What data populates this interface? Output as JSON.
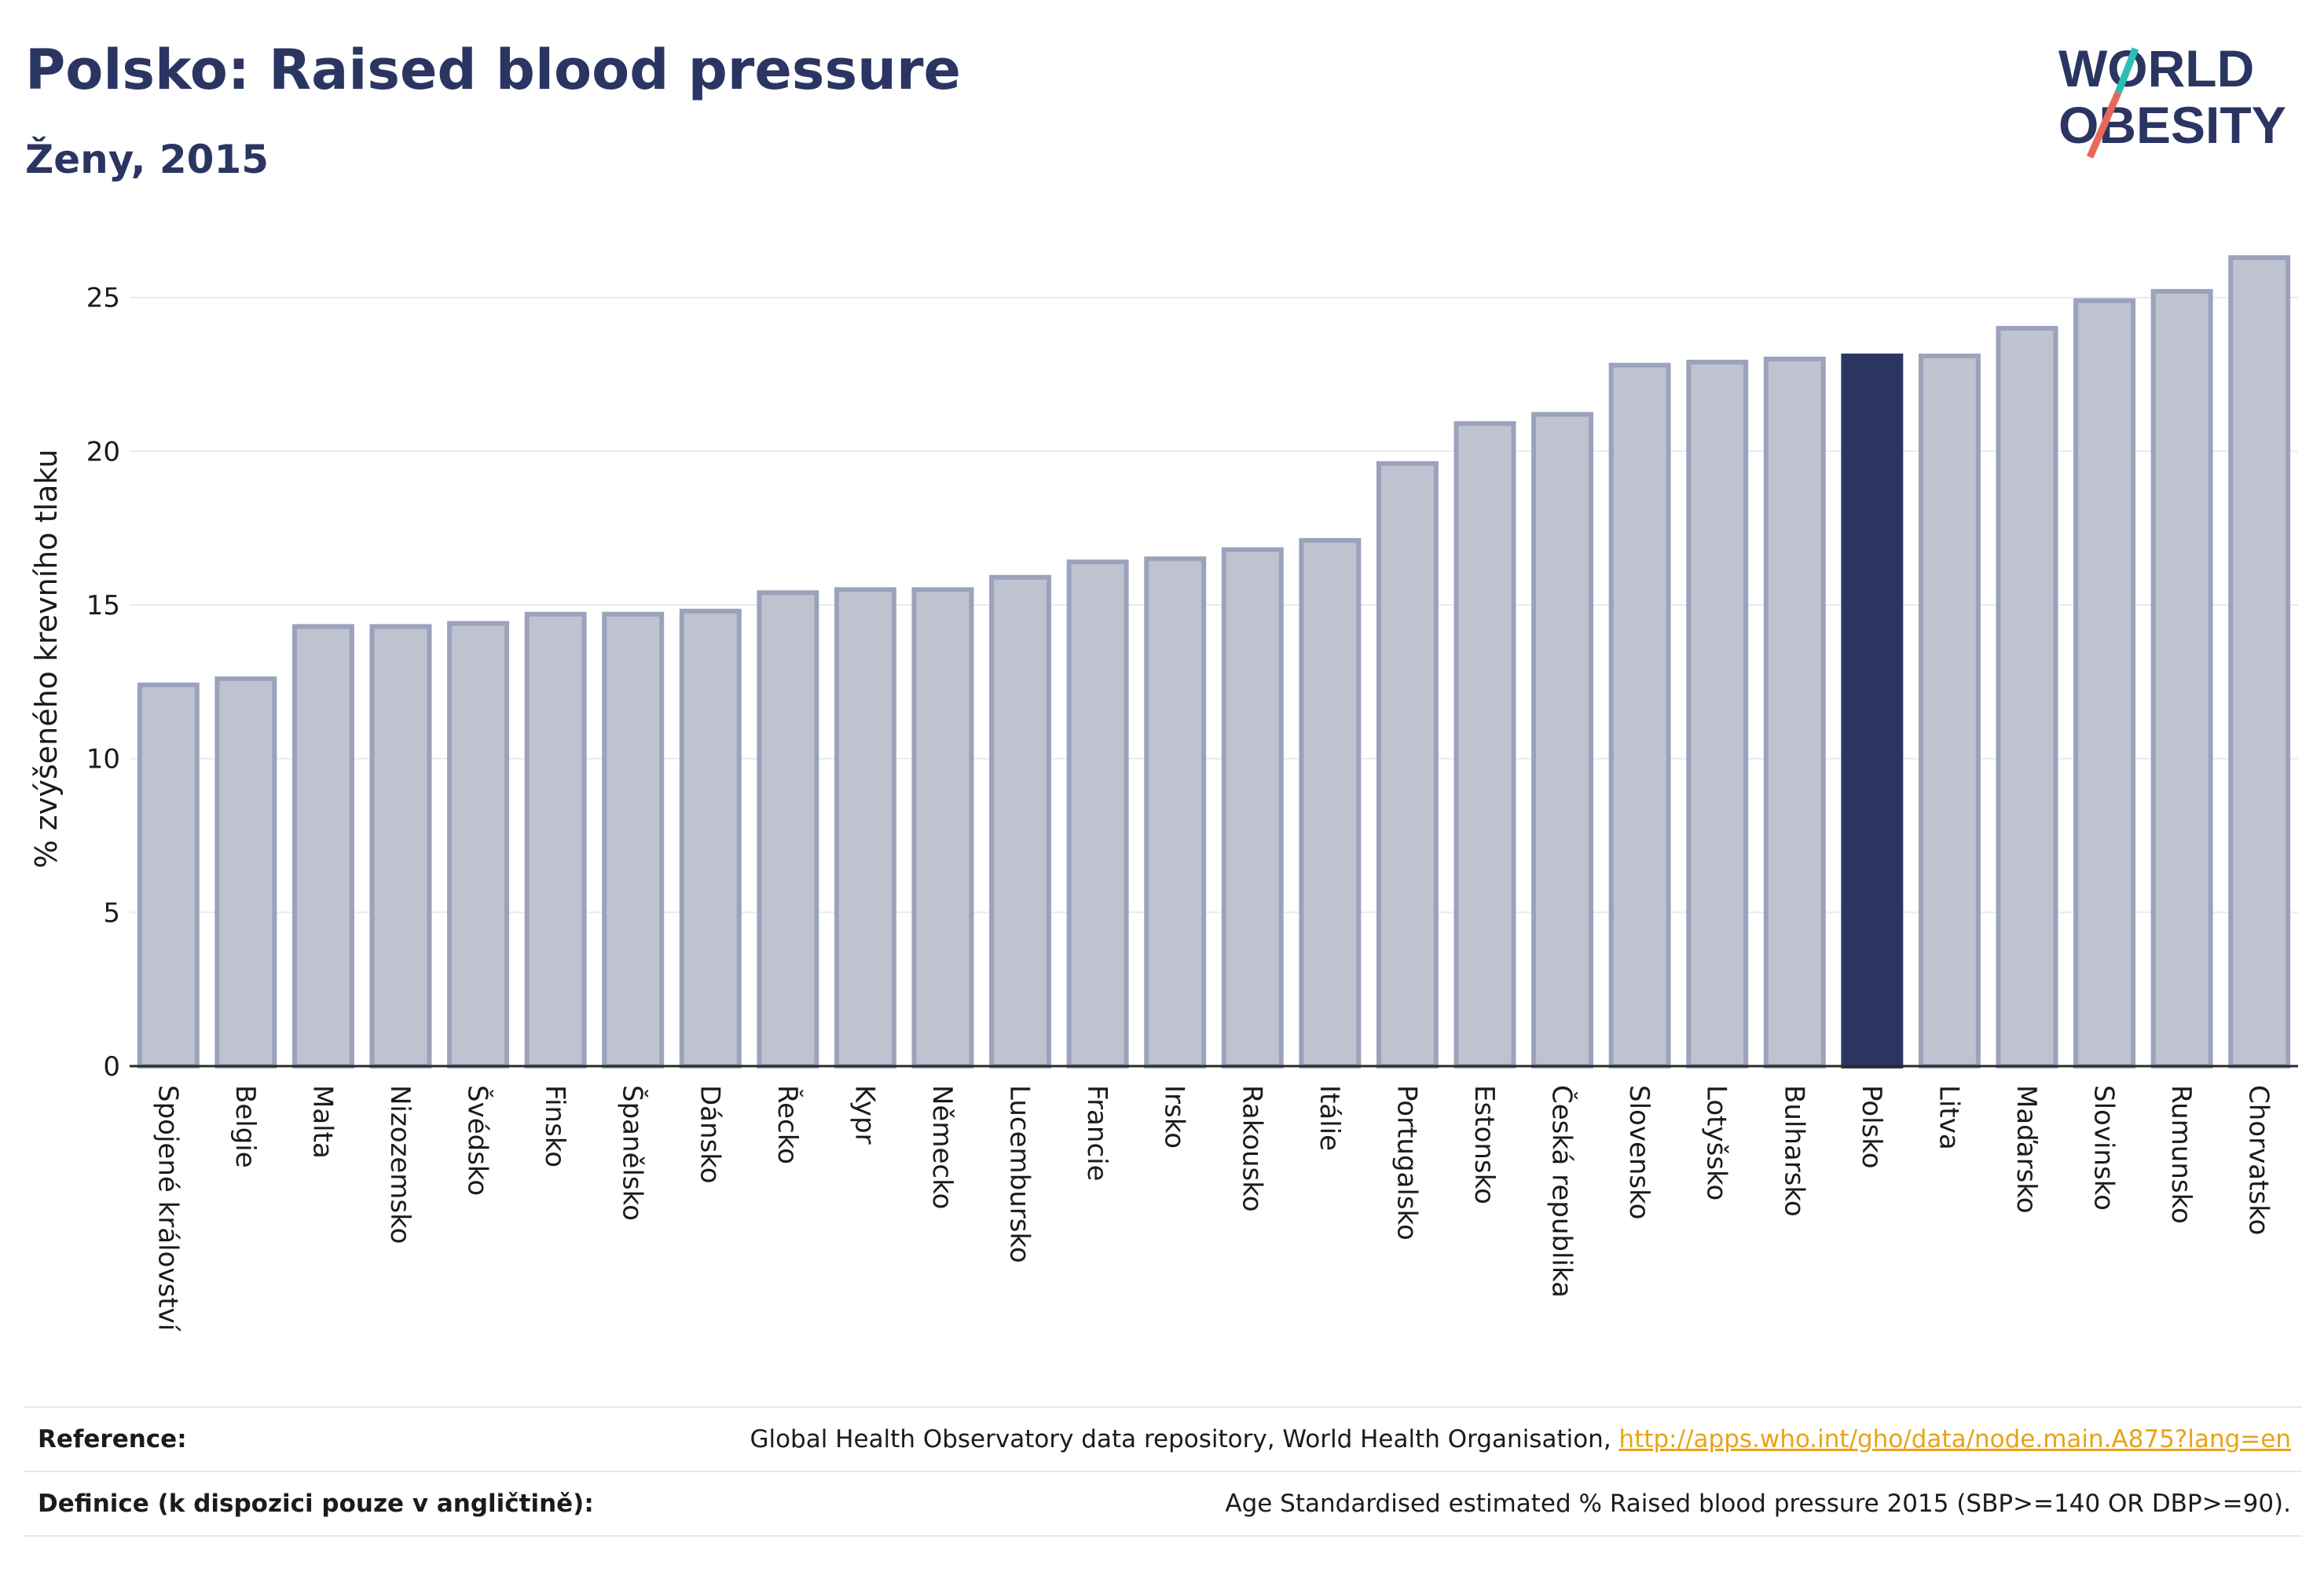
{
  "header": {
    "title": "Polsko: Raised blood pressure",
    "subtitle": "Ženy, 2015",
    "logo_text": "WORLD OBESITY"
  },
  "colors": {
    "bar_default_fill": "#bfc2cf",
    "bar_default_stroke": "#9ba2bb",
    "bar_highlight": "#2b3562",
    "title": "#2b3562",
    "link": "#e8a317",
    "logo_slash_teal": "#2bbfb0",
    "logo_slash_red": "#e8685a"
  },
  "chart_data": {
    "type": "bar",
    "title": "Polsko: Raised blood pressure",
    "subtitle": "Ženy, 2015",
    "xlabel": "",
    "ylabel": "% zvýšeného krevního tlaku",
    "ylim": [
      0,
      26.5
    ],
    "yticks": [
      0,
      5,
      10,
      15,
      20,
      25
    ],
    "grid": true,
    "highlight": "Polsko",
    "categories": [
      "Spojené království",
      "Belgie",
      "Malta",
      "Nizozemsko",
      "Švédsko",
      "Finsko",
      "Španělsko",
      "Dánsko",
      "Řecko",
      "Kypr",
      "Německo",
      "Lucembursko",
      "Francie",
      "Irsko",
      "Rakousko",
      "Itálie",
      "Portugalsko",
      "Estonsko",
      "Česká republika",
      "Slovensko",
      "Lotyšsko",
      "Bulharsko",
      "Polsko",
      "Litva",
      "Maďarsko",
      "Slovinsko",
      "Rumunsko",
      "Chorvatsko"
    ],
    "values": [
      12.4,
      12.6,
      14.3,
      14.3,
      14.4,
      14.7,
      14.7,
      14.8,
      15.4,
      15.5,
      15.5,
      15.9,
      16.4,
      16.5,
      16.8,
      17.1,
      19.6,
      20.9,
      21.2,
      22.8,
      22.9,
      23.0,
      23.1,
      23.1,
      24.0,
      24.9,
      25.2,
      26.3
    ]
  },
  "references": {
    "reference_label": "Reference:",
    "reference_text": "Global Health Observatory data repository, World Health Organisation, ",
    "reference_link": "http://apps.who.int/gho/data/node.main.A875?lang=en",
    "definition_label": "Definice (k dispozici pouze v angličtině):",
    "definition_text": "Age Standardised estimated % Raised blood pressure 2015 (SBP>=140 OR DBP>=90)."
  }
}
